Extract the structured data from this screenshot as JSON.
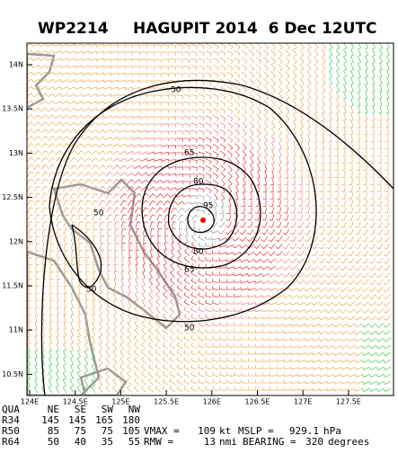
{
  "header": {
    "storm_id": "WP2214",
    "title": "HAGUPIT 2014  6 Dec 12UTC"
  },
  "map": {
    "lat_labels": [
      "14N",
      "13.5N",
      "13N",
      "12.5N",
      "12N",
      "11.5N",
      "11N",
      "10.5N"
    ],
    "lon_labels": [
      "124E",
      "124.5E",
      "125E",
      "125.5E",
      "126E",
      "126.5E",
      "127E",
      "127.5E"
    ],
    "contour_labels": [
      50,
      50,
      50,
      50,
      65,
      80,
      95,
      80,
      65
    ]
  },
  "table": {
    "columns": [
      "QUA",
      "NE",
      "SE",
      "SW",
      "NW"
    ],
    "rows": [
      [
        "R34",
        145,
        145,
        165,
        180
      ],
      [
        "R50",
        85,
        75,
        75,
        105
      ],
      [
        "R64",
        50,
        40,
        35,
        55
      ]
    ]
  },
  "summary": {
    "vmax_label": "VMAX =",
    "vmax": 109,
    "vmax_unit": "kt",
    "mslp_label": "MSLP =",
    "mslp": 929.1,
    "mslp_unit": "hPa",
    "rmw_label": "RMW =",
    "rmw": 13,
    "rmw_unit": "nmi",
    "bearing_label": "BEARING =",
    "bearing": 320,
    "bearing_unit": "degrees"
  }
}
